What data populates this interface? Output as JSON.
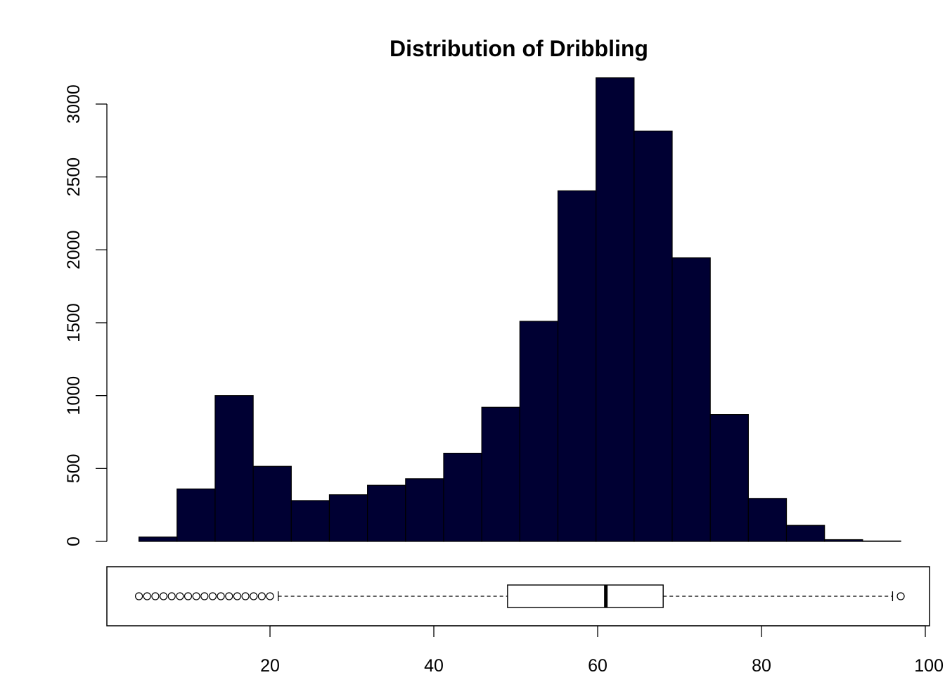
{
  "chart_data": {
    "type": "bar",
    "title": "Distribution of Dribbling",
    "xlabel": "",
    "ylabel": "",
    "bar_color": "#000033",
    "bins": [
      {
        "start": 4.0,
        "end": 8.65,
        "count": 30
      },
      {
        "start": 8.65,
        "end": 13.3,
        "count": 360
      },
      {
        "start": 13.3,
        "end": 17.95,
        "count": 1000
      },
      {
        "start": 17.95,
        "end": 22.6,
        "count": 515
      },
      {
        "start": 22.6,
        "end": 27.25,
        "count": 280
      },
      {
        "start": 27.25,
        "end": 31.9,
        "count": 320
      },
      {
        "start": 31.9,
        "end": 36.55,
        "count": 385
      },
      {
        "start": 36.55,
        "end": 41.2,
        "count": 430
      },
      {
        "start": 41.2,
        "end": 45.85,
        "count": 605
      },
      {
        "start": 45.85,
        "end": 50.5,
        "count": 920
      },
      {
        "start": 50.5,
        "end": 55.15,
        "count": 1510
      },
      {
        "start": 55.15,
        "end": 59.8,
        "count": 2405
      },
      {
        "start": 59.8,
        "end": 64.45,
        "count": 3180
      },
      {
        "start": 64.45,
        "end": 69.1,
        "count": 2815
      },
      {
        "start": 69.1,
        "end": 73.75,
        "count": 1945
      },
      {
        "start": 73.75,
        "end": 78.4,
        "count": 870
      },
      {
        "start": 78.4,
        "end": 83.05,
        "count": 295
      },
      {
        "start": 83.05,
        "end": 87.7,
        "count": 110
      },
      {
        "start": 87.7,
        "end": 92.35,
        "count": 12
      },
      {
        "start": 92.35,
        "end": 97.0,
        "count": 3
      }
    ],
    "y_ticks": [
      0,
      500,
      1000,
      1500,
      2000,
      2500,
      3000
    ],
    "y_tick_labels": [
      "0",
      "500",
      "1000",
      "1500",
      "2000",
      "2500",
      "3000"
    ],
    "ylim": [
      0,
      3180
    ],
    "x_ticks": [
      20,
      40,
      60,
      80,
      100
    ],
    "x_tick_labels": [
      "20",
      "40",
      "60",
      "80",
      "100"
    ],
    "xlim": [
      1,
      100
    ],
    "boxplot": {
      "q1": 49,
      "median": 61,
      "q3": 68,
      "whisker_low": 21,
      "whisker_high": 96,
      "outliers": [
        4,
        5,
        6,
        7,
        8,
        9,
        10,
        11,
        12,
        13,
        14,
        15,
        16,
        17,
        18,
        19,
        20,
        97
      ]
    },
    "grid": false,
    "legend": "none"
  }
}
